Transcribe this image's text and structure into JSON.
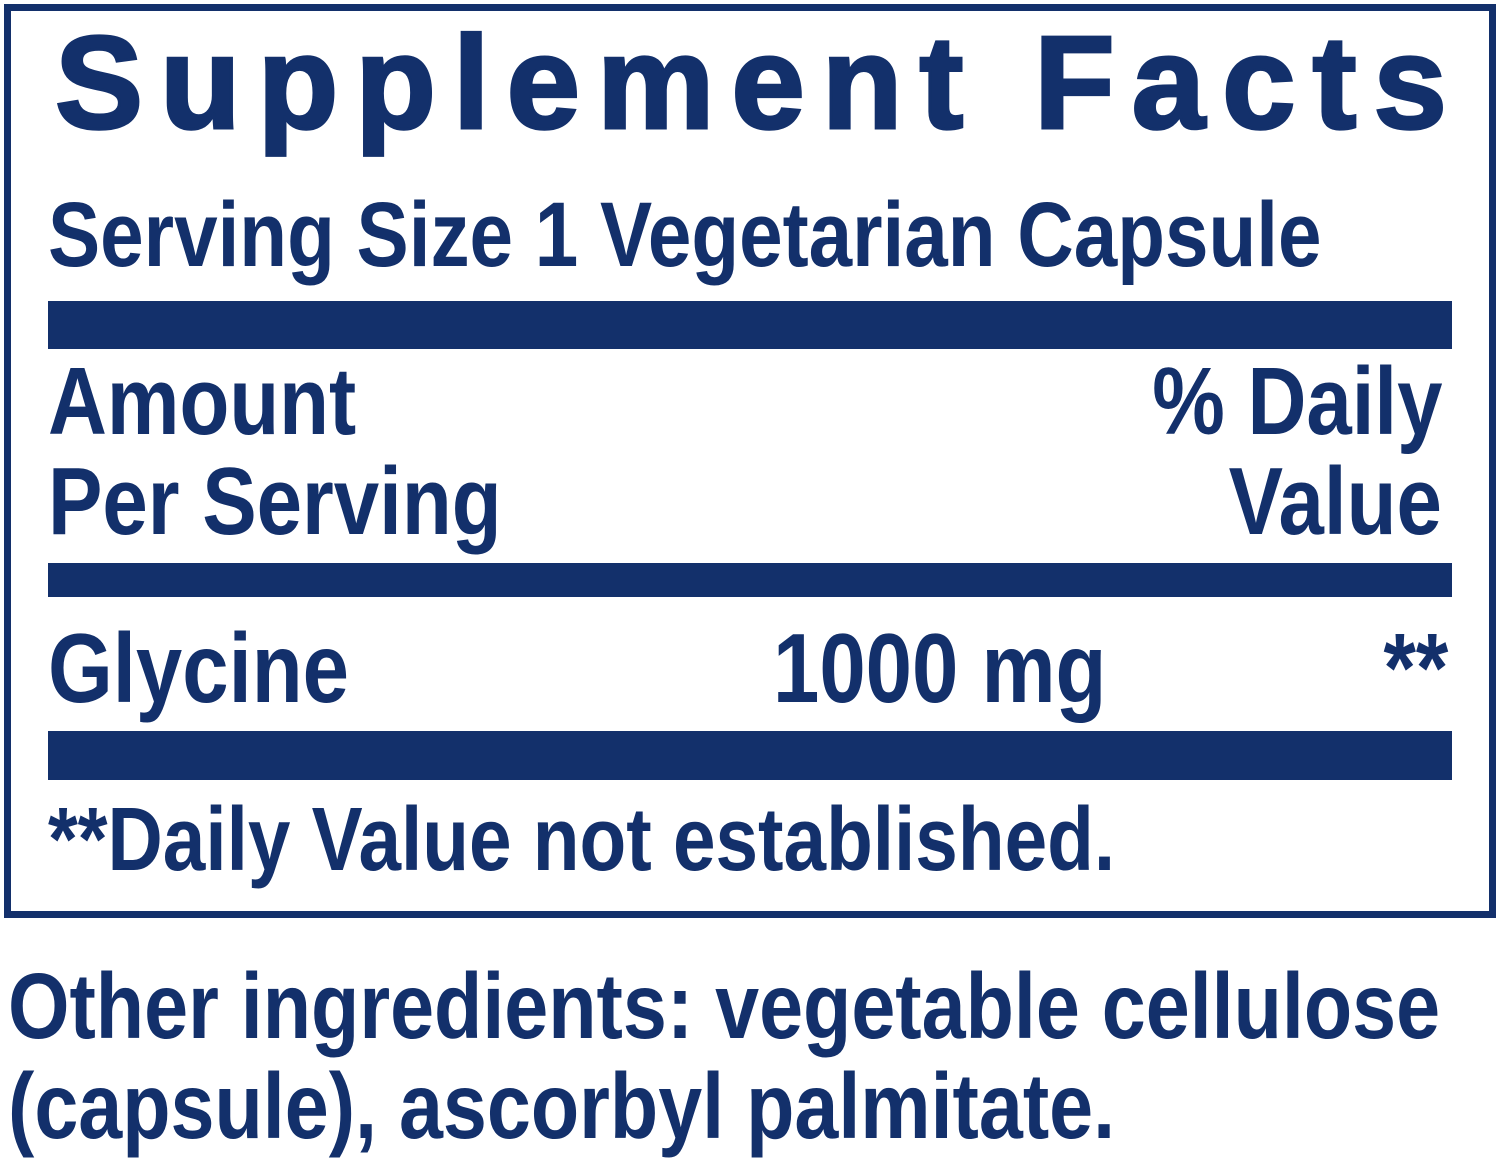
{
  "colors": {
    "navy": "#13306B",
    "background": "#FFFFFF"
  },
  "panel": {
    "title": "Supplement Facts",
    "serving_size": "Serving Size 1 Vegetarian Capsule",
    "header": {
      "amount_lines": [
        "Amount",
        "Per Serving"
      ],
      "daily_value_lines": [
        "% Daily",
        "Value"
      ]
    },
    "rows": [
      {
        "name": "Glycine",
        "amount": "1000 mg",
        "daily_value": "**"
      }
    ],
    "footnote": "**Daily Value not established."
  },
  "other_ingredients": "Other ingredients: vegetable cellulose (capsule), ascorbyl palmitate."
}
